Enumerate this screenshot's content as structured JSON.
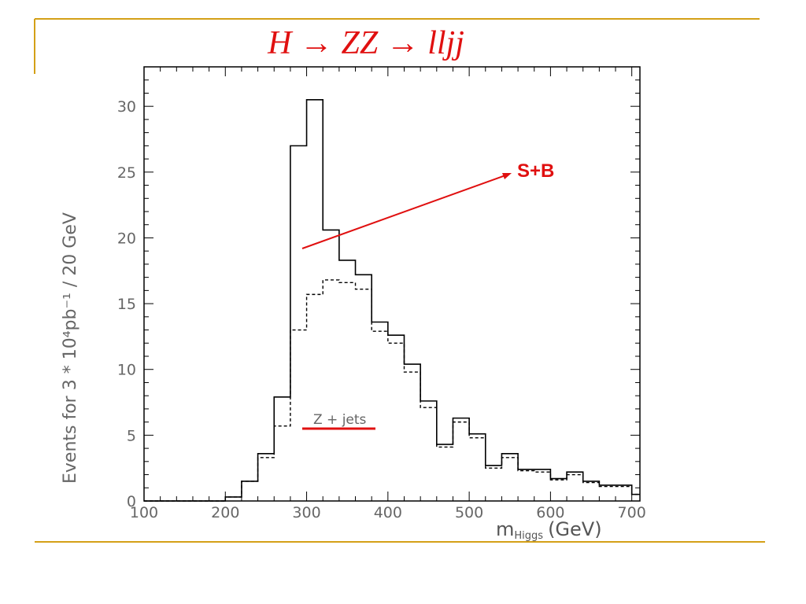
{
  "slide": {
    "title_parts": [
      "H",
      "→",
      "ZZ",
      "→",
      "lljj"
    ],
    "accent_color": "#e01010",
    "rule_color": "#d4a017"
  },
  "chart_data": {
    "type": "step-histogram",
    "xlabel_main": "m",
    "xlabel_sub": "Higgs",
    "xlabel_unit": "(GeV)",
    "ylabel": "Events for 3 * 10⁴pb⁻¹ / 20 GeV",
    "xlim": [
      100,
      710
    ],
    "ylim": [
      0,
      33
    ],
    "x_ticks": [
      100,
      200,
      300,
      400,
      500,
      600,
      700
    ],
    "y_ticks": [
      0,
      5,
      10,
      15,
      20,
      25,
      30
    ],
    "bin_edges": [
      100,
      120,
      140,
      160,
      180,
      200,
      220,
      240,
      260,
      280,
      300,
      320,
      340,
      360,
      380,
      400,
      420,
      440,
      460,
      480,
      500,
      520,
      540,
      560,
      580,
      600,
      620,
      640,
      660,
      680,
      700,
      720
    ],
    "series": [
      {
        "name": "S+B",
        "style": "solid",
        "values": [
          0,
          0,
          0,
          0,
          0,
          0.3,
          1.5,
          3.6,
          7.9,
          27.0,
          30.5,
          20.6,
          18.3,
          17.2,
          13.6,
          12.6,
          10.4,
          7.6,
          4.3,
          6.3,
          5.1,
          2.7,
          3.6,
          2.4,
          2.4,
          1.7,
          2.2,
          1.5,
          1.2,
          1.2,
          0.5
        ]
      },
      {
        "name": "Z + jets",
        "style": "dashed",
        "values": [
          0,
          0,
          0,
          0,
          0,
          0.3,
          1.5,
          3.3,
          5.7,
          13.0,
          15.7,
          16.8,
          16.6,
          16.1,
          12.9,
          12.0,
          9.8,
          7.1,
          4.1,
          6.0,
          4.8,
          2.5,
          3.3,
          2.3,
          2.2,
          1.6,
          2.0,
          1.4,
          1.1,
          1.1,
          0.5
        ]
      }
    ],
    "annotations": [
      {
        "label": "S+B",
        "kind": "arrow"
      },
      {
        "label": "Z + jets",
        "kind": "line-marker"
      }
    ]
  }
}
